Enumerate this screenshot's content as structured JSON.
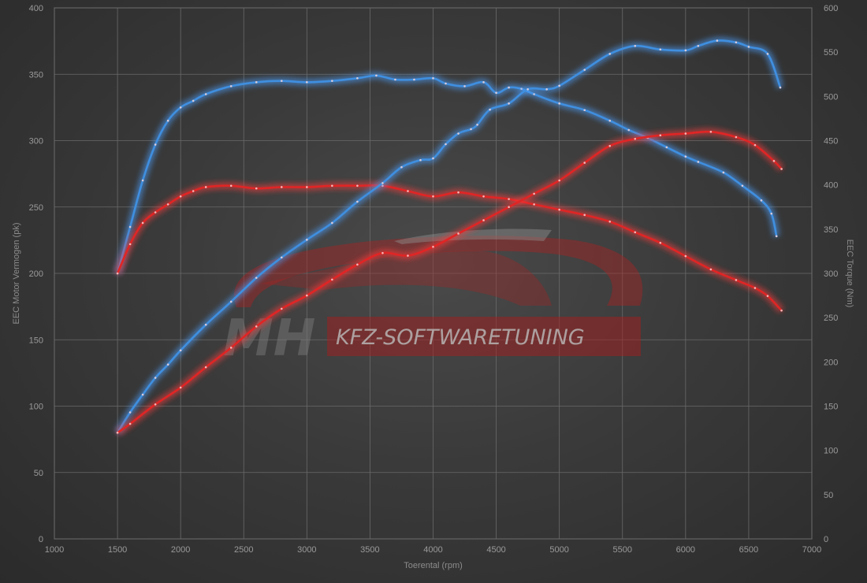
{
  "chart_data": {
    "type": "line",
    "xlabel": "Toerental (rpm)",
    "ylabel_left": "EEC Motor Vermogen (pk)",
    "ylabel_right": "EEC Torque (Nm)",
    "xlim": [
      1000,
      7000
    ],
    "ylim_left": [
      0,
      400
    ],
    "ylim_right": [
      0,
      600
    ],
    "x_ticks": [
      "1000",
      "1500",
      "2000",
      "2500",
      "3000",
      "3500",
      "4000",
      "4500",
      "5000",
      "5500",
      "6000",
      "6500",
      "7000"
    ],
    "y_ticks_left": [
      "0",
      "50",
      "100",
      "150",
      "200",
      "250",
      "300",
      "350",
      "400"
    ],
    "y_ticks_right": [
      "0",
      "50",
      "100",
      "150",
      "200",
      "250",
      "300",
      "350",
      "400",
      "450",
      "500",
      "550",
      "600"
    ],
    "grid": true,
    "series": [
      {
        "axis": "left",
        "color": "#3f8fe0",
        "glow": "#4aa0ff",
        "points": [
          [
            1500,
            200
          ],
          [
            1600,
            235
          ],
          [
            1700,
            270
          ],
          [
            1800,
            297
          ],
          [
            1900,
            315
          ],
          [
            2000,
            325
          ],
          [
            2100,
            330
          ],
          [
            2200,
            335
          ],
          [
            2400,
            341
          ],
          [
            2600,
            344
          ],
          [
            2800,
            345
          ],
          [
            3000,
            344
          ],
          [
            3200,
            345
          ],
          [
            3400,
            347
          ],
          [
            3550,
            349
          ],
          [
            3700,
            346
          ],
          [
            3850,
            346
          ],
          [
            4000,
            347
          ],
          [
            4100,
            343
          ],
          [
            4250,
            341
          ],
          [
            4400,
            344
          ],
          [
            4500,
            336
          ],
          [
            4600,
            340
          ],
          [
            4700,
            339
          ],
          [
            4800,
            335
          ],
          [
            5000,
            328
          ],
          [
            5200,
            323
          ],
          [
            5400,
            315
          ],
          [
            5550,
            308
          ],
          [
            5700,
            302
          ],
          [
            5850,
            295
          ],
          [
            6000,
            288
          ],
          [
            6100,
            284
          ],
          [
            6300,
            276
          ],
          [
            6450,
            266
          ],
          [
            6600,
            255
          ],
          [
            6680,
            245
          ],
          [
            6720,
            228
          ]
        ]
      },
      {
        "axis": "left",
        "color": "#e02525",
        "glow": "#ff3a3a",
        "points": [
          [
            1500,
            200
          ],
          [
            1600,
            222
          ],
          [
            1700,
            238
          ],
          [
            1800,
            246
          ],
          [
            1900,
            252
          ],
          [
            2000,
            258
          ],
          [
            2100,
            262
          ],
          [
            2200,
            265
          ],
          [
            2400,
            266
          ],
          [
            2600,
            264
          ],
          [
            2800,
            265
          ],
          [
            3000,
            265
          ],
          [
            3200,
            266
          ],
          [
            3400,
            266
          ],
          [
            3600,
            266
          ],
          [
            3800,
            262
          ],
          [
            4000,
            258
          ],
          [
            4200,
            261
          ],
          [
            4400,
            258
          ],
          [
            4600,
            256
          ],
          [
            4800,
            252
          ],
          [
            5000,
            248
          ],
          [
            5200,
            244
          ],
          [
            5400,
            239
          ],
          [
            5600,
            231
          ],
          [
            5800,
            223
          ],
          [
            6000,
            213
          ],
          [
            6200,
            203
          ],
          [
            6400,
            195
          ],
          [
            6550,
            189
          ],
          [
            6650,
            183
          ],
          [
            6760,
            172
          ]
        ]
      },
      {
        "axis": "right",
        "color": "#3f8fe0",
        "glow": "#4aa0ff",
        "points": [
          [
            1500,
            120
          ],
          [
            1600,
            143
          ],
          [
            1700,
            163
          ],
          [
            1800,
            182
          ],
          [
            1900,
            197
          ],
          [
            2000,
            213
          ],
          [
            2200,
            242
          ],
          [
            2400,
            268
          ],
          [
            2600,
            295
          ],
          [
            2800,
            318
          ],
          [
            3000,
            338
          ],
          [
            3200,
            357
          ],
          [
            3400,
            381
          ],
          [
            3600,
            402
          ],
          [
            3750,
            420
          ],
          [
            3900,
            428
          ],
          [
            4000,
            430
          ],
          [
            4100,
            446
          ],
          [
            4200,
            458
          ],
          [
            4300,
            463
          ],
          [
            4350,
            468
          ],
          [
            4450,
            485
          ],
          [
            4600,
            492
          ],
          [
            4750,
            508
          ],
          [
            4900,
            508
          ],
          [
            5000,
            512
          ],
          [
            5200,
            530
          ],
          [
            5400,
            548
          ],
          [
            5600,
            557
          ],
          [
            5800,
            553
          ],
          [
            6000,
            552
          ],
          [
            6100,
            557
          ],
          [
            6250,
            563
          ],
          [
            6400,
            561
          ],
          [
            6500,
            556
          ],
          [
            6650,
            548
          ],
          [
            6750,
            510
          ]
        ]
      },
      {
        "axis": "right",
        "color": "#e02525",
        "glow": "#ff3a3a",
        "points": [
          [
            1500,
            120
          ],
          [
            1600,
            130
          ],
          [
            1800,
            152
          ],
          [
            2000,
            171
          ],
          [
            2200,
            194
          ],
          [
            2400,
            216
          ],
          [
            2600,
            240
          ],
          [
            2800,
            260
          ],
          [
            3000,
            275
          ],
          [
            3200,
            293
          ],
          [
            3400,
            310
          ],
          [
            3600,
            323
          ],
          [
            3800,
            320
          ],
          [
            4000,
            330
          ],
          [
            4200,
            345
          ],
          [
            4400,
            360
          ],
          [
            4600,
            375
          ],
          [
            4800,
            390
          ],
          [
            5000,
            405
          ],
          [
            5200,
            425
          ],
          [
            5400,
            444
          ],
          [
            5600,
            452
          ],
          [
            5800,
            456
          ],
          [
            6000,
            458
          ],
          [
            6200,
            460
          ],
          [
            6400,
            454
          ],
          [
            6550,
            445
          ],
          [
            6700,
            427
          ],
          [
            6760,
            418
          ]
        ]
      }
    ]
  },
  "watermark": {
    "brand_short": "MH",
    "brand_text": "KFZ-SOFTWARETUNING"
  }
}
